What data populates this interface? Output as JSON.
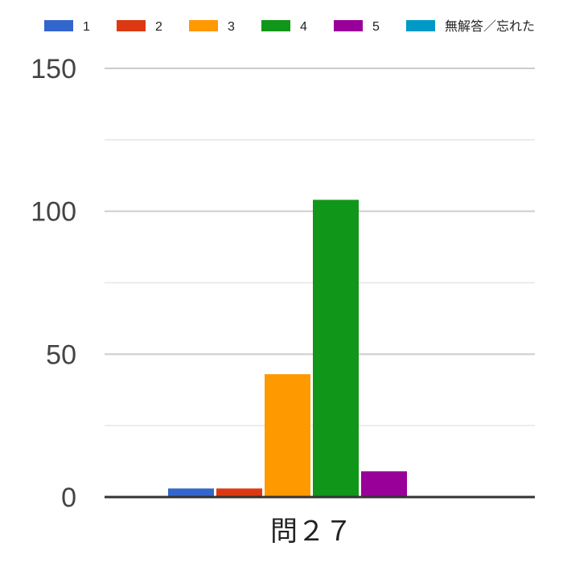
{
  "chart_data": {
    "type": "bar",
    "categories": [
      "問２７"
    ],
    "series": [
      {
        "name": "1",
        "color": "#3366cc",
        "values": [
          3
        ]
      },
      {
        "name": "2",
        "color": "#dc3912",
        "values": [
          3
        ]
      },
      {
        "name": "3",
        "color": "#ff9900",
        "values": [
          43
        ]
      },
      {
        "name": "4",
        "color": "#109618",
        "values": [
          104
        ]
      },
      {
        "name": "5",
        "color": "#990099",
        "values": [
          9
        ]
      },
      {
        "name": "無解答／忘れた",
        "color": "#0099c6",
        "values": [
          0
        ]
      }
    ],
    "yticks": [
      0,
      50,
      100,
      150
    ],
    "ylim": [
      0,
      150
    ],
    "grid": true,
    "legend": "top"
  }
}
